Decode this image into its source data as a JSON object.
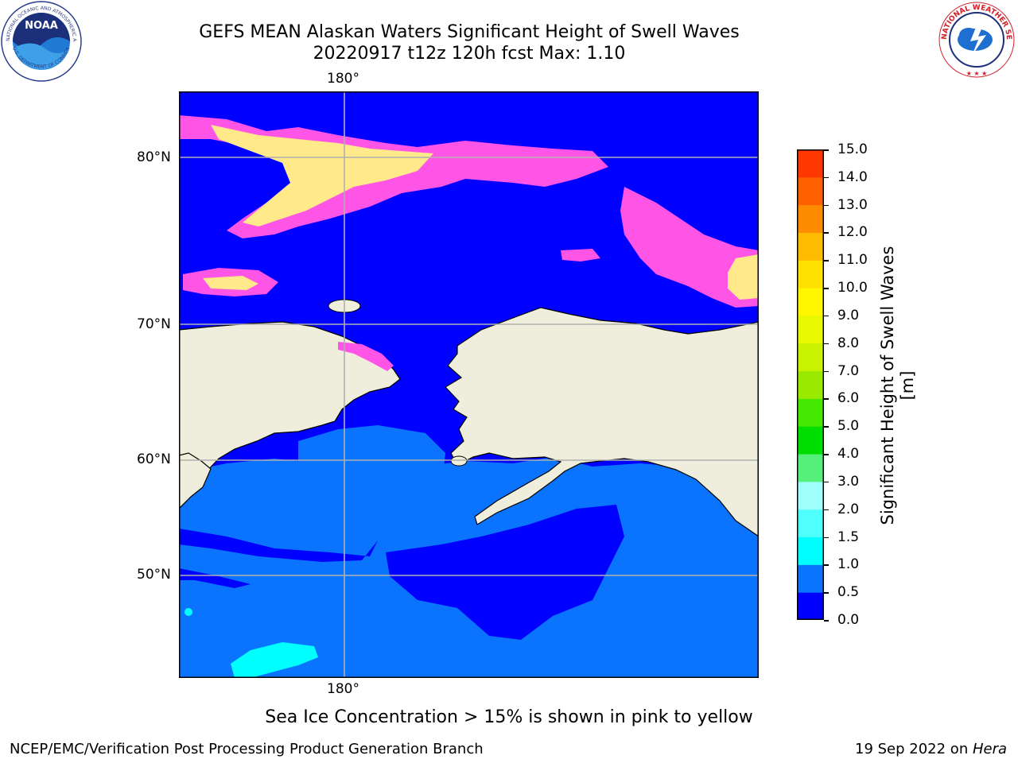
{
  "title": {
    "line1": "GEFS MEAN Alaskan Waters Significant Height of Swell Waves",
    "line2": "20220917 t12z 120h fcst   Max: 1.10"
  },
  "map": {
    "lon_label_top": "180°",
    "lon_label_bottom": "180°",
    "lat_labels": [
      "80°N",
      "70°N",
      "60°N",
      "50°N"
    ],
    "colors": {
      "land": "#efeedd",
      "sea_low": "#0000ff",
      "sea_mid": "#0a74ff",
      "sea_high": "#00ffff",
      "ice_pink": "#ff55e6",
      "ice_yellow": "#ffe98a"
    }
  },
  "colorbar": {
    "label": "Significant Height of Swell Waves [m]",
    "ticks": [
      "15.0",
      "14.0",
      "13.0",
      "12.0",
      "11.0",
      "10.0",
      "9.0",
      "8.0",
      "7.0",
      "6.0",
      "5.0",
      "4.0",
      "3.0",
      "2.0",
      "1.5",
      "1.0",
      "0.5",
      "0.0"
    ],
    "colors": [
      "#0000ff",
      "#0a74ff",
      "#00ffff",
      "#4efffb",
      "#a0fffb",
      "#55f07a",
      "#00dd00",
      "#44e800",
      "#99ea00",
      "#c8f200",
      "#e8f800",
      "#fff600",
      "#ffe000",
      "#ffbb00",
      "#ff8c00",
      "#ff6000",
      "#ff3800"
    ]
  },
  "subtitle": "Sea Ice Concentration > 15% is shown in pink to yellow",
  "footer": {
    "left": "NCEP/EMC/Verification Post Processing Product Generation Branch",
    "date": "19 Sep 2022 on ",
    "machine": "Hera"
  }
}
